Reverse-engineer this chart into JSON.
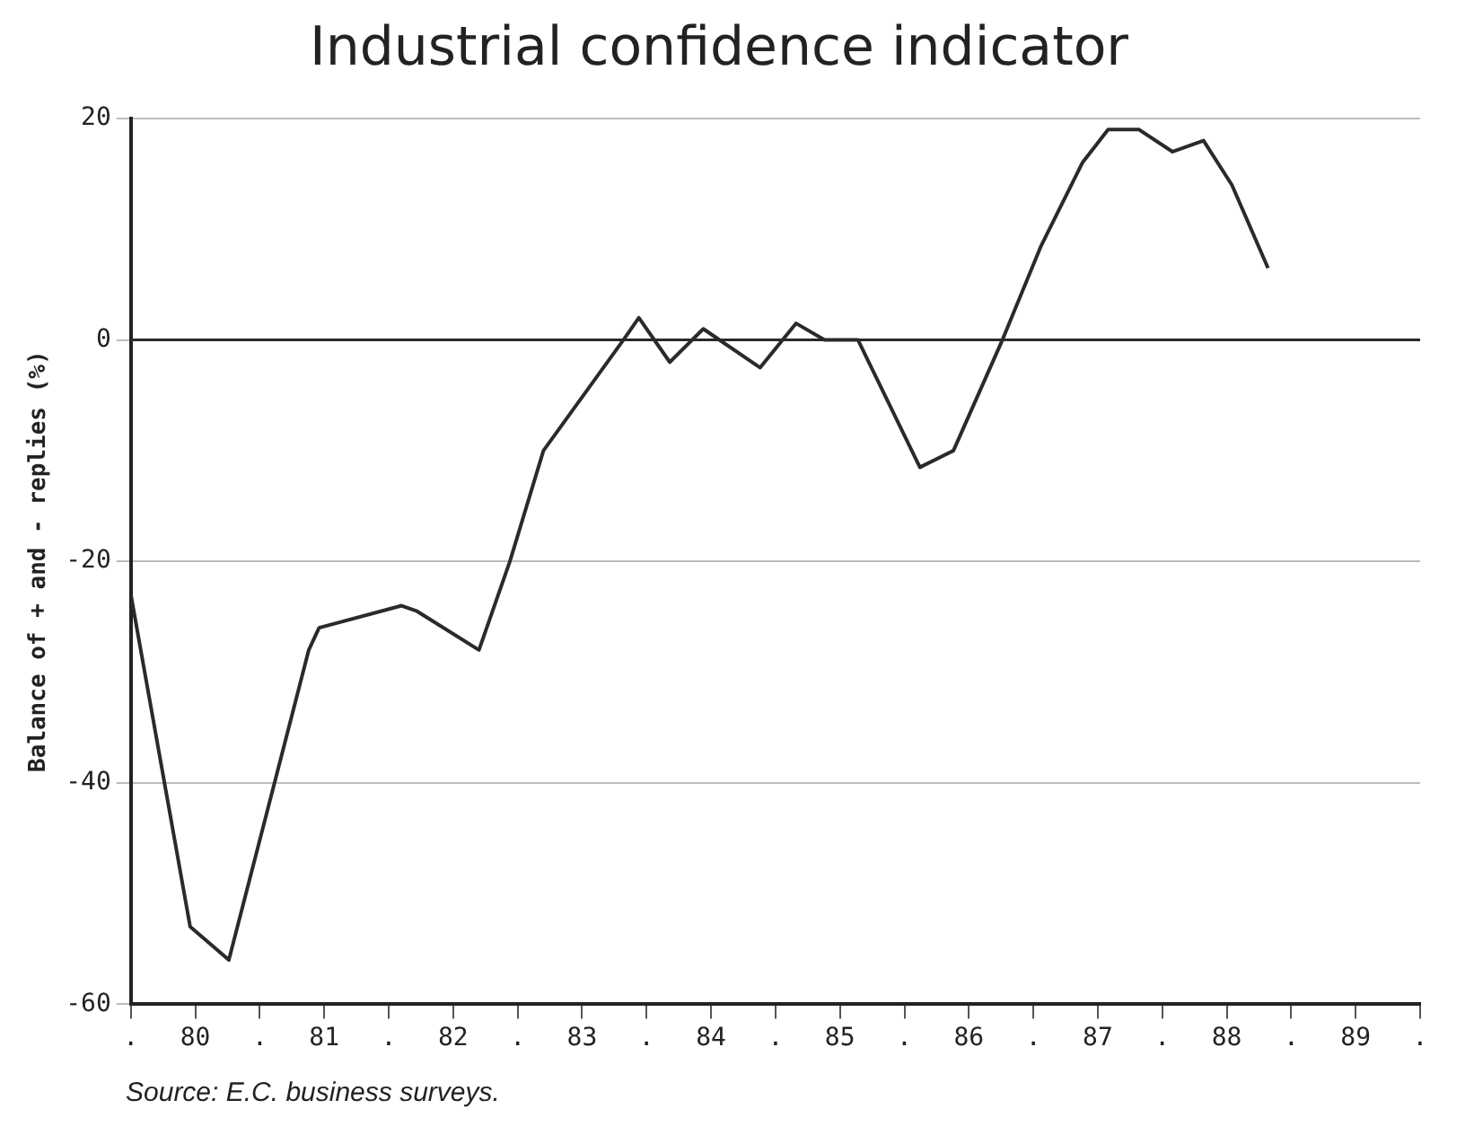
{
  "chart_data": {
    "type": "line",
    "title": "Industrial confidence indicator",
    "ylabel": "Balance of + and - replies (%)",
    "annotations": [
      "Source: E.C. business surveys."
    ],
    "x": [
      79.5,
      79.96,
      80.26,
      80.88,
      80.96,
      81.6,
      81.72,
      82.2,
      82.44,
      82.7,
      83.32,
      83.44,
      83.68,
      83.94,
      84.38,
      84.66,
      84.88,
      85.14,
      85.62,
      85.88,
      86.26,
      86.56,
      86.88,
      87.08,
      87.32,
      87.58,
      87.82,
      88.04,
      88.32
    ],
    "series": [
      {
        "color": "#2a2a2a",
        "values": [
          -23,
          -53,
          -56,
          -28,
          -26,
          -24,
          -24.5,
          -28,
          -20,
          -10,
          0,
          2,
          -2,
          1,
          -2.5,
          1.5,
          0,
          0,
          -11.5,
          -10,
          0,
          8.5,
          16,
          19,
          19,
          17,
          18,
          14,
          6.5
        ]
      }
    ],
    "xlim": [
      79.5,
      89.5
    ],
    "xticks": [
      {
        "value": 79.5,
        "label": "."
      },
      80,
      {
        "value": 80.5,
        "label": "."
      },
      81,
      {
        "value": 81.5,
        "label": "."
      },
      82,
      {
        "value": 82.5,
        "label": "."
      },
      83,
      {
        "value": 83.5,
        "label": "."
      },
      84,
      {
        "value": 84.5,
        "label": "."
      },
      85,
      {
        "value": 85.5,
        "label": "."
      },
      86,
      {
        "value": 86.5,
        "label": "."
      },
      87,
      {
        "value": 87.5,
        "label": "."
      },
      88,
      {
        "value": 88.5,
        "label": "."
      },
      89,
      {
        "value": 89.5,
        "label": "."
      }
    ],
    "ylim": [
      -60,
      20
    ],
    "yticks": [
      -60,
      -40,
      -20,
      0,
      20
    ],
    "grid": "y",
    "marker": "none",
    "line_style": "solid",
    "ref_lines": [
      {
        "axis": "y",
        "value": 0,
        "color": "#2a2a2a"
      }
    ]
  }
}
